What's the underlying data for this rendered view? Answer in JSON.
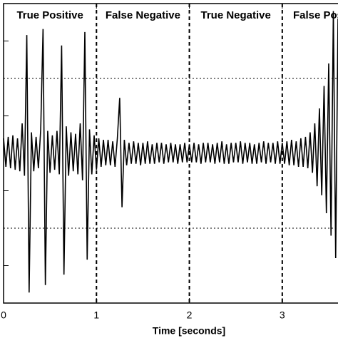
{
  "chart_data": {
    "type": "line",
    "xlabel": "Time [seconds]",
    "segments": [
      "True Positive",
      "False Negative",
      "True Negative",
      "False Positive"
    ],
    "dividers": [
      1,
      2,
      3
    ],
    "thresholds": [
      0.5,
      -0.5
    ],
    "xlim": [
      0,
      3.6
    ],
    "ylim": [
      -1,
      1
    ],
    "xticks": [
      0,
      1,
      2,
      3
    ],
    "yticks": [
      -0.75,
      -0.25,
      0.25,
      0.75
    ],
    "color": "#000000",
    "x": [
      0,
      0.025,
      0.05,
      0.075,
      0.1,
      0.125,
      0.15,
      0.175,
      0.2,
      0.225,
      0.25,
      0.275,
      0.3,
      0.325,
      0.35,
      0.375,
      0.4,
      0.425,
      0.45,
      0.475,
      0.5,
      0.525,
      0.55,
      0.575,
      0.6,
      0.625,
      0.65,
      0.675,
      0.7,
      0.725,
      0.75,
      0.775,
      0.8,
      0.825,
      0.85,
      0.875,
      0.9,
      0.925,
      0.95,
      0.975,
      1,
      1.025,
      1.05,
      1.075,
      1.1,
      1.125,
      1.15,
      1.175,
      1.2,
      1.225,
      1.25,
      1.275,
      1.3,
      1.325,
      1.35,
      1.375,
      1.4,
      1.425,
      1.45,
      1.475,
      1.5,
      1.525,
      1.55,
      1.575,
      1.6,
      1.625,
      1.65,
      1.675,
      1.7,
      1.725,
      1.75,
      1.775,
      1.8,
      1.825,
      1.85,
      1.875,
      1.9,
      1.925,
      1.95,
      1.975,
      2,
      2.025,
      2.05,
      2.075,
      2.1,
      2.125,
      2.15,
      2.175,
      2.2,
      2.225,
      2.25,
      2.275,
      2.3,
      2.325,
      2.35,
      2.375,
      2.4,
      2.425,
      2.45,
      2.475,
      2.5,
      2.525,
      2.55,
      2.575,
      2.6,
      2.625,
      2.65,
      2.675,
      2.7,
      2.725,
      2.75,
      2.775,
      2.8,
      2.825,
      2.85,
      2.875,
      2.9,
      2.925,
      2.95,
      2.975,
      3,
      3.025,
      3.05,
      3.075,
      3.1,
      3.125,
      3.15,
      3.175,
      3.2,
      3.225,
      3.25,
      3.275,
      3.3,
      3.325,
      3.35,
      3.375,
      3.4,
      3.425,
      3.45,
      3.475,
      3.5,
      3.525,
      3.55,
      3.575,
      3.6
    ],
    "values": [
      0.1,
      -0.09,
      0.11,
      -0.1,
      0.12,
      -0.11,
      0.1,
      -0.12,
      0.2,
      -0.15,
      0.79,
      -0.93,
      0.14,
      -0.12,
      0.11,
      -0.1,
      0.16,
      0.83,
      -0.88,
      0.15,
      -0.13,
      0.12,
      -0.11,
      0.15,
      -0.14,
      0.72,
      -0.81,
      0.18,
      -0.15,
      0.14,
      -0.12,
      0.13,
      -0.14,
      0.2,
      -0.18,
      0.81,
      -0.71,
      0.16,
      -0.14,
      0.12,
      -0.11,
      0.1,
      -0.09,
      0.09,
      -0.08,
      0.09,
      -0.08,
      0.08,
      -0.09,
      0.1,
      0.37,
      -0.36,
      0.09,
      -0.08,
      0.07,
      -0.07,
      0.08,
      -0.07,
      0.07,
      -0.08,
      0.07,
      -0.07,
      0.08,
      -0.07,
      0.06,
      -0.07,
      0.07,
      -0.06,
      0.07,
      -0.07,
      0.06,
      -0.06,
      0.07,
      -0.06,
      0.06,
      -0.07,
      0.06,
      -0.06,
      0.07,
      -0.06,
      0.06,
      -0.06,
      0.07,
      -0.06,
      0.06,
      -0.07,
      0.07,
      -0.06,
      0.07,
      -0.06,
      0.06,
      -0.07,
      0.07,
      -0.06,
      0.08,
      -0.07,
      0.06,
      -0.07,
      0.07,
      -0.06,
      0.07,
      -0.06,
      0.08,
      -0.07,
      0.07,
      -0.06,
      0.07,
      -0.07,
      0.06,
      -0.07,
      0.07,
      -0.06,
      0.08,
      -0.07,
      0.07,
      -0.06,
      0.07,
      -0.07,
      0.08,
      -0.07,
      0.07,
      -0.07,
      0.08,
      -0.08,
      0.09,
      -0.08,
      0.08,
      -0.09,
      0.1,
      -0.09,
      0.11,
      -0.1,
      0.14,
      -0.13,
      0.2,
      -0.22,
      0.3,
      -0.28,
      0.45,
      -0.4,
      0.6,
      -0.55,
      0.95,
      -0.7,
      0.9
    ]
  }
}
